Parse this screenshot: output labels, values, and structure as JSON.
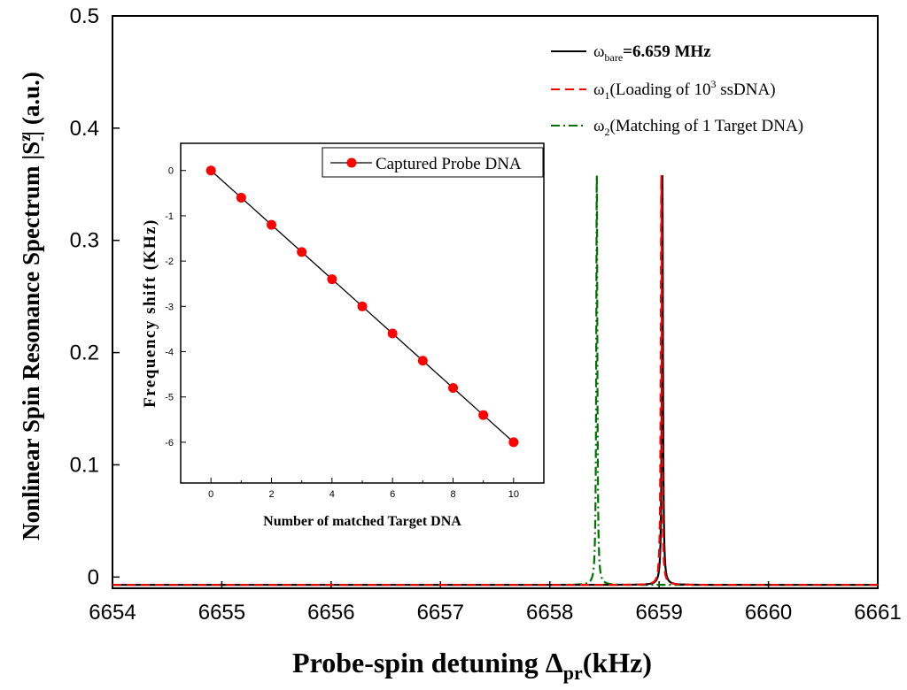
{
  "chart_data": [
    {
      "type": "line",
      "id": "main",
      "xlabel_main": "Probe-spin detuning Δ",
      "xlabel_sub": "pr",
      "xlabel_unit": "(kHz)",
      "ylabel_prefix": "Nonlinear Spin Resonance Spectrum |S",
      "ylabel_sup": "z",
      "ylabel_sub": "-",
      "ylabel_suffix": "| (a.u.)",
      "xlim": [
        6654,
        6661
      ],
      "ylim": [
        -0.01,
        0.5
      ],
      "x_ticks": [
        6654,
        6655,
        6656,
        6657,
        6658,
        6659,
        6660,
        6661
      ],
      "x_tick_labels": [
        "6654",
        "6655",
        "6656",
        "6657",
        "6658",
        "6659",
        "6660",
        "6661"
      ],
      "y_ticks": [
        0.0,
        0.1,
        0.2,
        0.3,
        0.4,
        0.5
      ],
      "y_tick_labels": [
        "0",
        "0.1",
        "0.2",
        "0.3",
        "0.4",
        "0.5"
      ],
      "baseline": -0.007,
      "series": [
        {
          "name": "bare",
          "legend_symbol": "ω",
          "legend_sub": "bare",
          "legend_text": "=6.659 MHz",
          "color": "#000000",
          "dash": "solid",
          "peak_center": 6659.03,
          "peak_height": 0.365,
          "peak_width": 0.006
        },
        {
          "name": "omega1",
          "legend_symbol": "ω",
          "legend_sub": "1",
          "legend_text_before": "(Loading of 10",
          "legend_sup": "3",
          "legend_text_after": " ssDNA)",
          "color": "#ff0000",
          "dash": "dashed",
          "peak_center": 6659.02,
          "peak_height": 0.365,
          "peak_width": 0.006
        },
        {
          "name": "omega2",
          "legend_symbol": "ω",
          "legend_sub": "2",
          "legend_text": "(Matching of 1 Target DNA)",
          "color": "#007000",
          "dash": "dashdot",
          "peak_center": 6658.43,
          "peak_height": 0.365,
          "peak_width": 0.006
        }
      ]
    },
    {
      "type": "line",
      "id": "inset",
      "xlabel": "Number of matched Target DNA",
      "ylabel": "Frequency shift (KHz)",
      "xlim": [
        -1,
        11
      ],
      "ylim": [
        -6.9,
        0.6
      ],
      "x_ticks": [
        0,
        2,
        4,
        6,
        8,
        10
      ],
      "x_tick_labels": [
        "0",
        "2",
        "4",
        "6",
        "8",
        "10"
      ],
      "y_ticks": [
        0,
        -1,
        -2,
        -3,
        -4,
        -5,
        -6
      ],
      "y_tick_labels": [
        "0",
        "-1",
        "-2",
        "-3",
        "-4",
        "-5",
        "-6"
      ],
      "series": [
        {
          "name": "Captured  Probe DNA",
          "line_color": "#000000",
          "marker_color": "#ff0000",
          "x": [
            0,
            1,
            2,
            3,
            4,
            5,
            6,
            7,
            8,
            9,
            10
          ],
          "y": [
            0,
            -0.6,
            -1.2,
            -1.8,
            -2.4,
            -3.0,
            -3.6,
            -4.2,
            -4.8,
            -5.4,
            -6.0
          ]
        }
      ]
    }
  ]
}
